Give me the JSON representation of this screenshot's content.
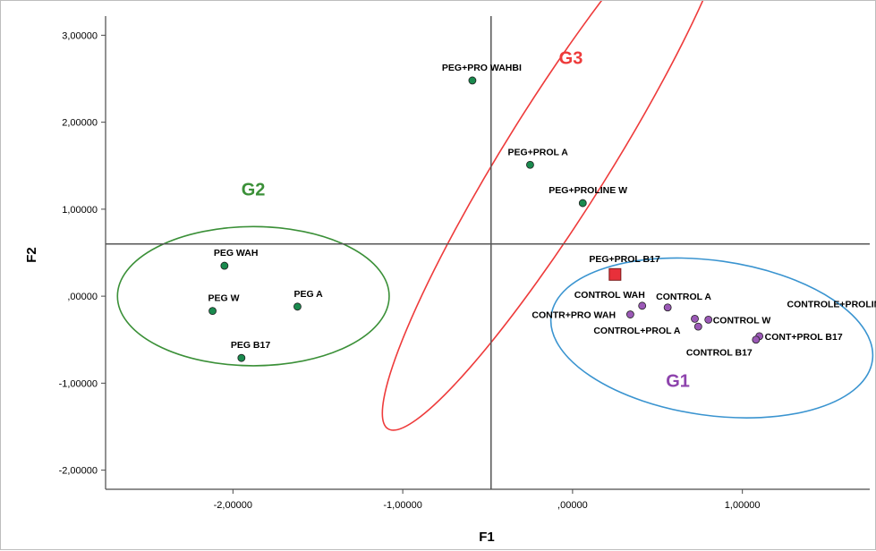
{
  "chart_data": {
    "type": "scatter",
    "title": "",
    "xlabel": "F1",
    "ylabel": "F2",
    "xlim": [
      -2.75,
      1.75
    ],
    "ylim": [
      -2.22,
      3.22
    ],
    "x_ticks": [
      -2,
      -1,
      0,
      1
    ],
    "x_tick_labels": [
      "-2,00000",
      "-1,00000",
      ",00000",
      "1,00000"
    ],
    "y_ticks": [
      -2,
      -1,
      0,
      1,
      2,
      3
    ],
    "y_tick_labels": [
      "-2,00000",
      "-1,00000",
      ",00000",
      "1,00000",
      "2,00000",
      "3,00000"
    ],
    "reference_lines": {
      "x": -0.48,
      "y": 0.6
    },
    "grid": false,
    "legend": "none",
    "colors": {
      "green_point": "#1a8a4e",
      "purple_point": "#9b59b6",
      "red_marker": "#e8303a",
      "g1": "#3a94d0",
      "g2": "#3b9038",
      "g3": "#ee3b3b",
      "g1_label": "#8e44ad"
    },
    "points": [
      {
        "label": "PEG+PRO WAHBI",
        "x": -0.59,
        "y": 2.48,
        "color": "green",
        "label_dx": -34,
        "label_dy": -11
      },
      {
        "label": "PEG+PROL A",
        "x": -0.25,
        "y": 1.51,
        "color": "green",
        "label_dx": -25,
        "label_dy": -11
      },
      {
        "label": "PEG+PROLINE W",
        "x": 0.06,
        "y": 1.07,
        "color": "green",
        "label_dx": -38,
        "label_dy": -11
      },
      {
        "label": "PEG WAH",
        "x": -2.05,
        "y": 0.35,
        "color": "green",
        "label_dx": -12,
        "label_dy": -11
      },
      {
        "label": "PEG W",
        "x": -2.12,
        "y": -0.17,
        "color": "green",
        "label_dx": -5,
        "label_dy": -11
      },
      {
        "label": "PEG A",
        "x": -1.62,
        "y": -0.12,
        "color": "green",
        "label_dx": -4,
        "label_dy": -11
      },
      {
        "label": "PEG B17",
        "x": -1.95,
        "y": -0.71,
        "color": "green",
        "label_dx": -12,
        "label_dy": -11
      },
      {
        "label": "PEG+PROL B17",
        "x": 0.25,
        "y": 0.25,
        "color": "red",
        "label_dx": -29,
        "label_dy": -14
      },
      {
        "label": "CONTROL WAH",
        "x": 0.41,
        "y": -0.11,
        "color": "purple",
        "label_dx": -76,
        "label_dy": -9
      },
      {
        "label": "CONTROL A",
        "x": 0.56,
        "y": -0.13,
        "color": "purple",
        "label_dx": -13,
        "label_dy": -9
      },
      {
        "label": "CONTR+PRO WAH",
        "x": 0.34,
        "y": -0.21,
        "color": "purple",
        "label_dx": -110,
        "label_dy": 4
      },
      {
        "label": "CONTROL+PROL A",
        "x": 0.74,
        "y": -0.35,
        "color": "purple",
        "label_dx": -117,
        "label_dy": 8
      },
      {
        "label": "CONTROL W",
        "x": 0.8,
        "y": -0.27,
        "color": "purple",
        "label_dx": 5,
        "label_dy": 4
      },
      {
        "label": "CONTROLE+PROLINE W",
        "x": 0.72,
        "y": -0.26,
        "color": "purple",
        "label_dx": 103,
        "label_dy": -13
      },
      {
        "label": "CONT+PROL B17",
        "x": 1.1,
        "y": -0.46,
        "color": "purple",
        "label_dx": 6,
        "label_dy": 4
      },
      {
        "label": "CONTROL B17",
        "x": 1.08,
        "y": -0.5,
        "color": "purple",
        "label_dx": -78,
        "label_dy": 18
      }
    ],
    "groups": [
      {
        "name": "G1",
        "color": "#3a94d0",
        "label_color": "#8e44ad",
        "cx": 0.82,
        "cy": -0.48,
        "rx": 0.955,
        "ry": 0.89,
        "rotation": 8,
        "label_x": 0.62,
        "label_y": -1.04
      },
      {
        "name": "G2",
        "color": "#3b9038",
        "label_color": "#3b9038",
        "cx": -1.88,
        "cy": 0.0,
        "rx": 0.8,
        "ry": 0.8,
        "rotation": 0,
        "label_x": -1.88,
        "label_y": 1.16
      },
      {
        "name": "G3",
        "color": "#ee3b3b",
        "label_color": "#ee3b3b",
        "cx": -0.08,
        "cy": 1.62,
        "rx": 1.9,
        "ry": 0.6,
        "rotation": -58,
        "label_x": -0.01,
        "label_y": 2.67
      }
    ]
  }
}
